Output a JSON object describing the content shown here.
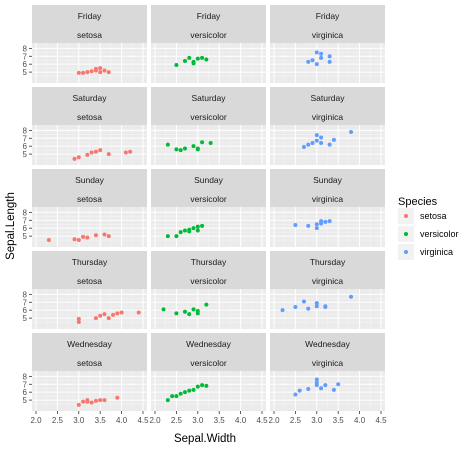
{
  "chart_data": {
    "type": "scatter",
    "facet_layout": "rows = day, columns = species",
    "xlabel": "Sepal.Width",
    "ylabel": "Sepal.Length",
    "xlim": [
      2.0,
      4.5
    ],
    "ylim": [
      4.0,
      8.3
    ],
    "x_ticks": [
      "2.0",
      "2.5",
      "3.0",
      "3.5",
      "4.0",
      "4.5"
    ],
    "y_ticks": [
      "5",
      "6",
      "7",
      "8"
    ],
    "x_tick_values": [
      2.0,
      2.5,
      3.0,
      3.5,
      4.0,
      4.5
    ],
    "y_tick_values": [
      5,
      6,
      7,
      8
    ],
    "row_labels": [
      "Friday",
      "Saturday",
      "Sunday",
      "Thursday",
      "Wednesday"
    ],
    "col_labels": [
      "setosa",
      "versicolor",
      "virginica"
    ],
    "legend": {
      "title": "Species",
      "position": "right",
      "entries": [
        {
          "label": "setosa",
          "color": "#F8766D"
        },
        {
          "label": "versicolor",
          "color": "#00BA38"
        },
        {
          "label": "virginica",
          "color": "#619CFF"
        }
      ]
    },
    "panel_background": "#EBEBEB",
    "strip_background": "#D9D9D9",
    "grid": true,
    "panels": [
      {
        "row": 0,
        "col": 0,
        "points": [
          [
            3.0,
            4.9
          ],
          [
            3.2,
            5.0
          ],
          [
            3.3,
            5.1
          ],
          [
            3.4,
            5.2
          ],
          [
            3.4,
            5.4
          ],
          [
            3.5,
            5.0
          ],
          [
            3.5,
            5.5
          ],
          [
            3.6,
            5.2
          ],
          [
            3.7,
            5.0
          ],
          [
            3.1,
            4.9
          ]
        ]
      },
      {
        "row": 0,
        "col": 1,
        "points": [
          [
            2.5,
            5.9
          ],
          [
            2.7,
            6.4
          ],
          [
            2.8,
            6.8
          ],
          [
            2.9,
            6.1
          ],
          [
            3.0,
            6.7
          ],
          [
            3.1,
            6.8
          ],
          [
            3.2,
            6.6
          ],
          [
            2.9,
            6.3
          ]
        ]
      },
      {
        "row": 0,
        "col": 2,
        "points": [
          [
            2.8,
            6.3
          ],
          [
            2.9,
            6.5
          ],
          [
            3.0,
            7.5
          ],
          [
            3.0,
            6.0
          ],
          [
            3.1,
            6.8
          ],
          [
            3.1,
            7.3
          ],
          [
            3.3,
            6.3
          ],
          [
            3.3,
            7.0
          ]
        ]
      },
      {
        "row": 1,
        "col": 0,
        "points": [
          [
            2.9,
            4.4
          ],
          [
            3.0,
            4.6
          ],
          [
            3.2,
            4.9
          ],
          [
            3.3,
            5.2
          ],
          [
            3.4,
            5.3
          ],
          [
            3.5,
            5.5
          ],
          [
            3.7,
            5.0
          ],
          [
            4.1,
            5.2
          ],
          [
            4.2,
            5.3
          ]
        ]
      },
      {
        "row": 1,
        "col": 1,
        "points": [
          [
            2.3,
            6.2
          ],
          [
            2.5,
            5.6
          ],
          [
            2.6,
            5.5
          ],
          [
            2.7,
            5.7
          ],
          [
            2.9,
            6.0
          ],
          [
            3.0,
            5.7
          ],
          [
            3.0,
            5.6
          ],
          [
            3.1,
            6.5
          ],
          [
            3.3,
            6.4
          ]
        ]
      },
      {
        "row": 1,
        "col": 2,
        "points": [
          [
            2.7,
            5.9
          ],
          [
            2.8,
            6.2
          ],
          [
            2.9,
            6.4
          ],
          [
            3.0,
            6.7
          ],
          [
            3.1,
            7.1
          ],
          [
            3.1,
            6.4
          ],
          [
            3.3,
            6.2
          ],
          [
            3.4,
            6.8
          ],
          [
            3.8,
            7.8
          ],
          [
            3.0,
            7.4
          ]
        ]
      },
      {
        "row": 2,
        "col": 0,
        "points": [
          [
            2.3,
            4.5
          ],
          [
            2.9,
            4.6
          ],
          [
            3.0,
            4.5
          ],
          [
            3.1,
            4.9
          ],
          [
            3.2,
            4.8
          ],
          [
            3.4,
            5.1
          ],
          [
            3.6,
            5.2
          ],
          [
            3.7,
            5.0
          ]
        ]
      },
      {
        "row": 2,
        "col": 1,
        "points": [
          [
            2.3,
            5.0
          ],
          [
            2.5,
            5.0
          ],
          [
            2.6,
            5.5
          ],
          [
            2.7,
            5.7
          ],
          [
            2.8,
            5.8
          ],
          [
            2.9,
            6.0
          ],
          [
            3.0,
            6.2
          ],
          [
            3.0,
            5.7
          ],
          [
            3.1,
            6.3
          ],
          [
            2.8,
            5.6
          ]
        ]
      },
      {
        "row": 2,
        "col": 2,
        "points": [
          [
            2.5,
            6.4
          ],
          [
            2.8,
            6.3
          ],
          [
            3.0,
            6.5
          ],
          [
            3.0,
            6.0
          ],
          [
            3.1,
            6.9
          ],
          [
            3.2,
            6.8
          ],
          [
            3.3,
            6.9
          ],
          [
            3.1,
            6.6
          ]
        ]
      },
      {
        "row": 3,
        "col": 0,
        "points": [
          [
            3.0,
            4.5
          ],
          [
            3.0,
            4.9
          ],
          [
            3.4,
            5.0
          ],
          [
            3.5,
            5.3
          ],
          [
            3.6,
            5.5
          ],
          [
            3.7,
            5.0
          ],
          [
            3.8,
            5.4
          ],
          [
            3.9,
            5.6
          ],
          [
            4.4,
            5.7
          ],
          [
            4.0,
            5.7
          ]
        ]
      },
      {
        "row": 3,
        "col": 1,
        "points": [
          [
            2.2,
            6.1
          ],
          [
            2.5,
            5.6
          ],
          [
            2.7,
            5.8
          ],
          [
            2.8,
            5.5
          ],
          [
            3.0,
            5.9
          ],
          [
            3.0,
            5.6
          ],
          [
            3.2,
            6.7
          ],
          [
            2.9,
            6.1
          ]
        ]
      },
      {
        "row": 3,
        "col": 2,
        "points": [
          [
            2.2,
            6.0
          ],
          [
            2.5,
            6.4
          ],
          [
            2.7,
            7.1
          ],
          [
            2.8,
            6.2
          ],
          [
            3.0,
            6.5
          ],
          [
            3.0,
            6.9
          ],
          [
            3.2,
            6.5
          ],
          [
            3.2,
            6.4
          ],
          [
            3.8,
            7.7
          ]
        ]
      },
      {
        "row": 4,
        "col": 0,
        "points": [
          [
            3.0,
            4.4
          ],
          [
            3.1,
            4.8
          ],
          [
            3.2,
            4.8
          ],
          [
            3.2,
            5.0
          ],
          [
            3.4,
            4.9
          ],
          [
            3.5,
            5.0
          ],
          [
            3.6,
            5.0
          ],
          [
            3.9,
            5.3
          ],
          [
            3.3,
            4.7
          ]
        ]
      },
      {
        "row": 4,
        "col": 1,
        "points": [
          [
            2.3,
            5.0
          ],
          [
            2.4,
            5.5
          ],
          [
            2.5,
            5.5
          ],
          [
            2.7,
            6.0
          ],
          [
            2.8,
            6.2
          ],
          [
            3.0,
            6.7
          ],
          [
            3.1,
            6.9
          ],
          [
            3.2,
            6.8
          ],
          [
            2.9,
            6.3
          ],
          [
            2.6,
            5.8
          ]
        ]
      },
      {
        "row": 4,
        "col": 2,
        "points": [
          [
            2.5,
            5.7
          ],
          [
            2.6,
            6.2
          ],
          [
            2.8,
            6.4
          ],
          [
            3.0,
            7.2
          ],
          [
            3.0,
            6.9
          ],
          [
            3.1,
            6.5
          ],
          [
            3.2,
            6.9
          ],
          [
            3.4,
            6.3
          ],
          [
            3.5,
            7.0
          ],
          [
            3.0,
            7.6
          ]
        ]
      }
    ]
  }
}
